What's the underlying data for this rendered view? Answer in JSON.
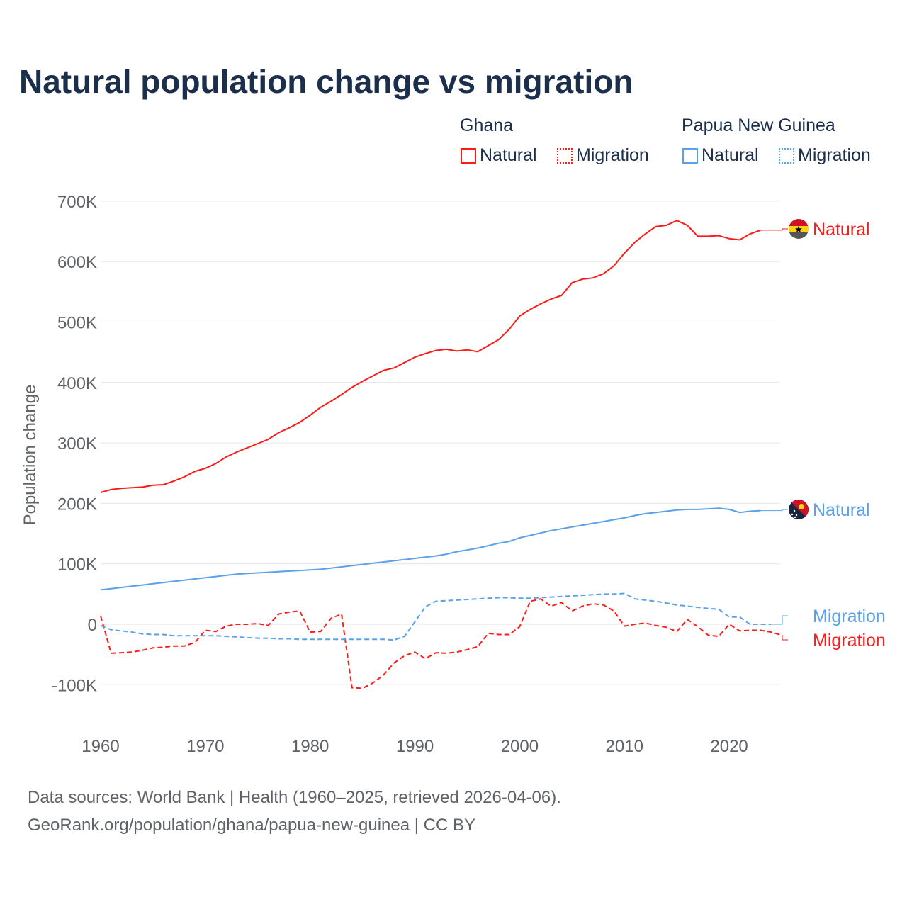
{
  "chart_data": {
    "type": "line",
    "title": "Natural population change vs migration",
    "ylabel": "Population change",
    "xlabel": "",
    "ylim": [
      -100000,
      700000
    ],
    "xlim": [
      1960,
      2025
    ],
    "y_ticks": [
      {
        "v": 700000,
        "label": "700K"
      },
      {
        "v": 600000,
        "label": "600K"
      },
      {
        "v": 500000,
        "label": "500K"
      },
      {
        "v": 400000,
        "label": "400K"
      },
      {
        "v": 300000,
        "label": "300K"
      },
      {
        "v": 200000,
        "label": "200K"
      },
      {
        "v": 100000,
        "label": "100K"
      },
      {
        "v": 0,
        "label": "0"
      },
      {
        "v": -100000,
        "label": "-100K"
      }
    ],
    "x_ticks": [
      1960,
      1970,
      1980,
      1990,
      2000,
      2010,
      2020
    ],
    "grid": true,
    "legend": {
      "placement": "top-right",
      "groups": [
        {
          "country": "Ghana",
          "items": [
            "Natural",
            "Migration"
          ]
        },
        {
          "country": "Papua New Guinea",
          "items": [
            "Natural",
            "Migration"
          ]
        }
      ]
    },
    "series": [
      {
        "name": "Ghana Natural",
        "country": "Ghana",
        "kind": "Natural",
        "label": "Natural",
        "color": "#ff1a1a",
        "dash": false,
        "start": 1960,
        "values": [
          218,
          223,
          225,
          226,
          227,
          230,
          231,
          237,
          244,
          253,
          258,
          266,
          277,
          285,
          292,
          299,
          306,
          317,
          325,
          334,
          346,
          359,
          369,
          380,
          392,
          402,
          411,
          420,
          424,
          433,
          442,
          448,
          453,
          455,
          452,
          454,
          451,
          461,
          471,
          488,
          510,
          521,
          530,
          538,
          544,
          565,
          571,
          573,
          580,
          593,
          614,
          632,
          646,
          658,
          660,
          668,
          660,
          642,
          642,
          643,
          638,
          636,
          646,
          652
        ]
      },
      {
        "name": "Ghana Migration",
        "country": "Ghana",
        "kind": "Migration",
        "label": "Migration",
        "color": "#ff1a1a",
        "dash": true,
        "start": 1960,
        "values": [
          14,
          -48,
          -47,
          -46,
          -43,
          -39,
          -38,
          -36,
          -36,
          -30,
          -10,
          -12,
          -3,
          0,
          0,
          1,
          -2,
          17,
          20,
          22,
          -13,
          -12,
          10,
          17,
          -105,
          -106,
          -97,
          -84,
          -64,
          -52,
          -46,
          -57,
          -47,
          -48,
          -46,
          -42,
          -37,
          -15,
          -17,
          -17,
          -4,
          38,
          42,
          30,
          36,
          22,
          30,
          34,
          32,
          22,
          -3,
          0,
          2,
          -2,
          -5,
          -12,
          8,
          -4,
          -18,
          -20,
          0,
          -11,
          -10,
          -10,
          -13,
          -18
        ]
      },
      {
        "name": "Papua New Guinea Natural",
        "country": "Papua New Guinea",
        "kind": "Natural",
        "label": "Natural",
        "color": "#5aa1e8",
        "dash": false,
        "start": 1960,
        "values": [
          57,
          59,
          61,
          63,
          65,
          67,
          69,
          71,
          73,
          75,
          77,
          79,
          81,
          83,
          84,
          85,
          86,
          87,
          88,
          89,
          90,
          91,
          93,
          95,
          97,
          99,
          101,
          103,
          105,
          107,
          109,
          111,
          113,
          116,
          120,
          123,
          126,
          130,
          134,
          137,
          143,
          147,
          151,
          155,
          158,
          161,
          164,
          167,
          170,
          173,
          176,
          180,
          183,
          185,
          187,
          189,
          190,
          190,
          191,
          192,
          190,
          185,
          187,
          188
        ]
      },
      {
        "name": "Papua New Guinea Migration",
        "country": "Papua New Guinea",
        "kind": "Migration",
        "label": "Migration",
        "color": "#5aa1e8",
        "dash": true,
        "start": 1960,
        "values": [
          -2,
          -9,
          -11,
          -13,
          -16,
          -17,
          -17,
          -19,
          -19,
          -19,
          -19,
          -19,
          -20,
          -21,
          -22,
          -23,
          -23,
          -24,
          -24,
          -25,
          -25,
          -25,
          -25,
          -25,
          -25,
          -25,
          -25,
          -25,
          -26,
          -20,
          4,
          29,
          38,
          39,
          40,
          41,
          42,
          43,
          44,
          44,
          43,
          43,
          44,
          45,
          46,
          47,
          48,
          49,
          50,
          50,
          51,
          42,
          40,
          38,
          35,
          32,
          30,
          28,
          26,
          25,
          12,
          12,
          0,
          0,
          0
        ]
      }
    ],
    "units": "thousands"
  },
  "footer": {
    "line1": "Data sources: World Bank | Health (1960–2025, retrieved 2026-04-06).",
    "line2": "GeoRank.org/population/ghana/papua-new-guinea | CC BY"
  }
}
